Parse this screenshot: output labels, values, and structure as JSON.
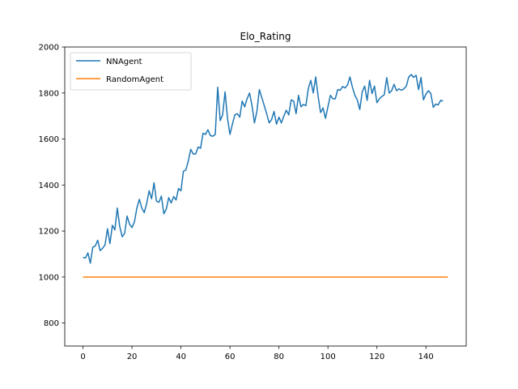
{
  "chart_data": {
    "type": "line",
    "title": "Elo_Rating",
    "xlabel": "",
    "ylabel": "",
    "xlim": [
      -7.45,
      156.45
    ],
    "ylim": [
      700,
      2000
    ],
    "xticks": [
      0,
      20,
      40,
      60,
      80,
      100,
      120,
      140
    ],
    "yticks": [
      800,
      1000,
      1200,
      1400,
      1600,
      1800,
      2000
    ],
    "grid": false,
    "legend_position": "top-left",
    "series": [
      {
        "name": "NNAgent",
        "color": "#1f77b4",
        "values": [
          1085,
          1083,
          1105,
          1060,
          1130,
          1135,
          1160,
          1115,
          1125,
          1140,
          1210,
          1145,
          1225,
          1205,
          1300,
          1220,
          1175,
          1190,
          1265,
          1230,
          1215,
          1240,
          1300,
          1338,
          1300,
          1280,
          1320,
          1375,
          1340,
          1410,
          1330,
          1325,
          1352,
          1275,
          1295,
          1345,
          1322,
          1350,
          1335,
          1385,
          1375,
          1460,
          1465,
          1505,
          1555,
          1535,
          1535,
          1565,
          1560,
          1625,
          1620,
          1640,
          1615,
          1612,
          1620,
          1825,
          1680,
          1705,
          1805,
          1690,
          1620,
          1665,
          1705,
          1710,
          1695,
          1765,
          1740,
          1775,
          1800,
          1745,
          1670,
          1720,
          1815,
          1780,
          1745,
          1710,
          1670,
          1685,
          1720,
          1665,
          1695,
          1670,
          1700,
          1725,
          1705,
          1770,
          1765,
          1710,
          1790,
          1740,
          1750,
          1745,
          1820,
          1855,
          1800,
          1870,
          1785,
          1715,
          1735,
          1690,
          1740,
          1790,
          1775,
          1775,
          1815,
          1812,
          1828,
          1822,
          1835,
          1870,
          1825,
          1790,
          1770,
          1728,
          1805,
          1830,
          1768,
          1855,
          1798,
          1830,
          1758,
          1775,
          1785,
          1792,
          1867,
          1800,
          1810,
          1838,
          1810,
          1818,
          1812,
          1818,
          1830,
          1870,
          1880,
          1868,
          1877,
          1815,
          1868,
          1770,
          1795,
          1810,
          1798,
          1738,
          1752,
          1748,
          1768,
          1765
        ],
        "x_start": 0
      },
      {
        "name": "RandomAgent",
        "color": "#ff7f0e",
        "x": [
          0,
          149
        ],
        "values": [
          1000,
          1000
        ]
      }
    ]
  }
}
